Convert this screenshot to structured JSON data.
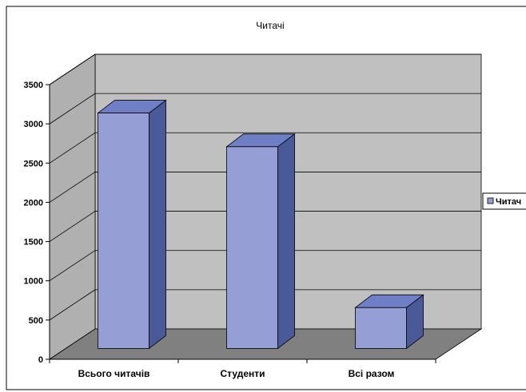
{
  "chart_data": {
    "type": "bar",
    "title": "Читачі",
    "categories": [
      "Всього читачів",
      "Студенти",
      "Всі разом"
    ],
    "series": [
      {
        "name": "Читачі",
        "values": [
          3000,
          2570,
          520
        ]
      }
    ],
    "ylim": [
      0,
      3500
    ],
    "yticks": [
      "0",
      "500",
      "1000",
      "1500",
      "2000",
      "2500",
      "3000",
      "3500"
    ],
    "grid": true,
    "legend": "right",
    "style": "3d-column",
    "colors": {
      "bar_front": "#959fd6",
      "bar_top": "#6f7fc6",
      "bar_side": "#4a5a99",
      "back_wall": "#c0c0c0",
      "side_wall": "#b0b0b0",
      "floor": "#808080"
    }
  },
  "legend_label": "Читач"
}
